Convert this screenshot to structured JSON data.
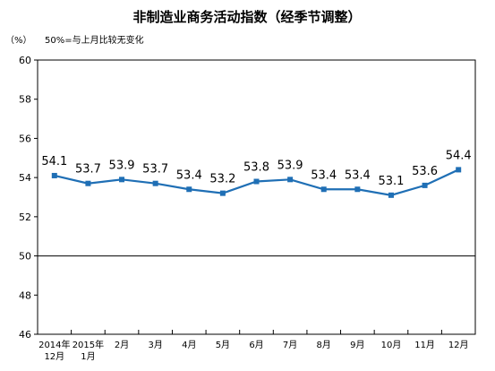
{
  "chart_data": {
    "type": "line",
    "title": "非制造业商务活动指数（经季节调整）",
    "unit_label": "（%）",
    "note": "50%=与上月比较无变化",
    "xlabel": "",
    "ylabel": "",
    "ylim": [
      46,
      60
    ],
    "yticks": [
      46,
      48,
      50,
      52,
      54,
      56,
      58,
      60
    ],
    "reference_line": 50,
    "categories": [
      [
        "2014年",
        "12月"
      ],
      [
        "2015年",
        "1月"
      ],
      [
        "2月"
      ],
      [
        "3月"
      ],
      [
        "4月"
      ],
      [
        "5月"
      ],
      [
        "6月"
      ],
      [
        "7月"
      ],
      [
        "8月"
      ],
      [
        "9月"
      ],
      [
        "10月"
      ],
      [
        "11月"
      ],
      [
        "12月"
      ]
    ],
    "series": [
      {
        "values": [
          54.1,
          53.7,
          53.9,
          53.7,
          53.4,
          53.2,
          53.8,
          53.9,
          53.4,
          53.4,
          53.1,
          53.6,
          54.4
        ]
      }
    ],
    "data_labels": [
      "54.1",
      "53.7",
      "53.9",
      "53.7",
      "53.4",
      "53.2",
      "53.8",
      "53.9",
      "53.4",
      "53.4",
      "53.1",
      "53.6",
      "54.4"
    ],
    "grid": false,
    "colors": {
      "line": "#1f6fb5",
      "axis": "#000000"
    }
  }
}
